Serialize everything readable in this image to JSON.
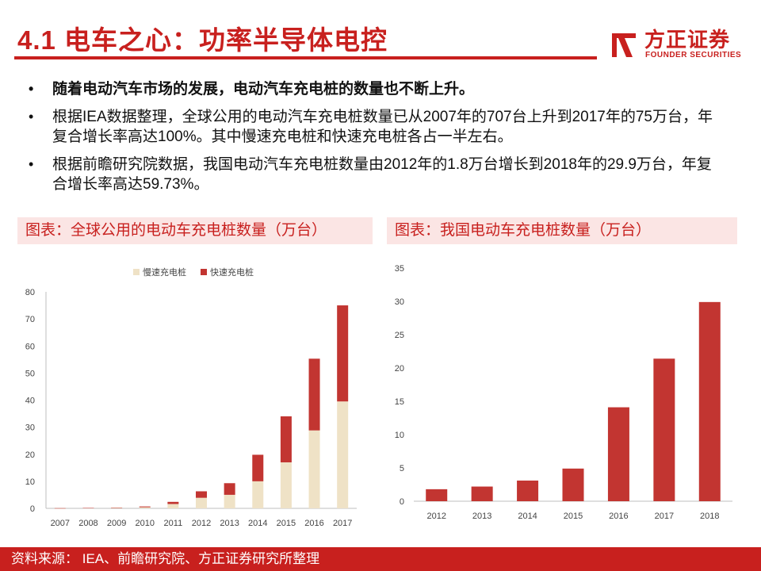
{
  "header": {
    "title": "4.1 电车之心：功率半导体电控",
    "logo_cn": "方正证券",
    "logo_en": "FOUNDER SECURITIES"
  },
  "bullets": [
    "随着电动汽车市场的发展，电动汽车充电桩的数量也不断上升。",
    "根据IEA数据整理，全球公用的电动汽车充电桩数量已从2007年的707台上升到2017年的75万台，年复合增长率高达100%。其中慢速充电桩和快速充电桩各占一半左右。",
    "根据前瞻研究院数据，我国电动汽车充电桩数量由2012年的1.8万台增长到2018年的29.9万台，年复合增长率高达59.73%。"
  ],
  "bullet_symbol": "•",
  "captions": {
    "left": "图表：全球公用的电动车充电桩数量（万台）",
    "right": "图表：我国电动车充电桩数量（万台）"
  },
  "footer": "资料来源： IEA、前瞻研究院、方正证券研究所整理",
  "colors": {
    "accent": "#c8201e",
    "slow": "#efe2c6",
    "fast": "#c23531",
    "caption_bg": "#fbe5e4"
  },
  "chart_data": [
    {
      "type": "bar",
      "stacked": true,
      "categories": [
        "2007",
        "2008",
        "2009",
        "2010",
        "2011",
        "2012",
        "2013",
        "2014",
        "2015",
        "2016",
        "2017"
      ],
      "series": [
        {
          "name": "慢速充电桩",
          "values": [
            0.05,
            0.1,
            0.2,
            0.4,
            1.6,
            3.9,
            5.0,
            10.0,
            17.0,
            28.8,
            39.5
          ]
        },
        {
          "name": "快速充电桩",
          "values": [
            0.02,
            0.05,
            0.1,
            0.3,
            0.8,
            2.4,
            4.3,
            9.8,
            17.0,
            26.5,
            35.5
          ]
        }
      ],
      "ylim": [
        0,
        80
      ],
      "yticks": [
        0,
        10,
        20,
        30,
        40,
        50,
        60,
        70,
        80
      ],
      "legend": "top",
      "grid": false
    },
    {
      "type": "bar",
      "categories": [
        "2012",
        "2013",
        "2014",
        "2015",
        "2016",
        "2017",
        "2018"
      ],
      "values": [
        1.8,
        2.2,
        3.1,
        4.9,
        14.1,
        21.4,
        29.9
      ],
      "ylim": [
        0,
        35
      ],
      "yticks": [
        0,
        5,
        10,
        15,
        20,
        25,
        30,
        35
      ],
      "grid": false
    }
  ]
}
